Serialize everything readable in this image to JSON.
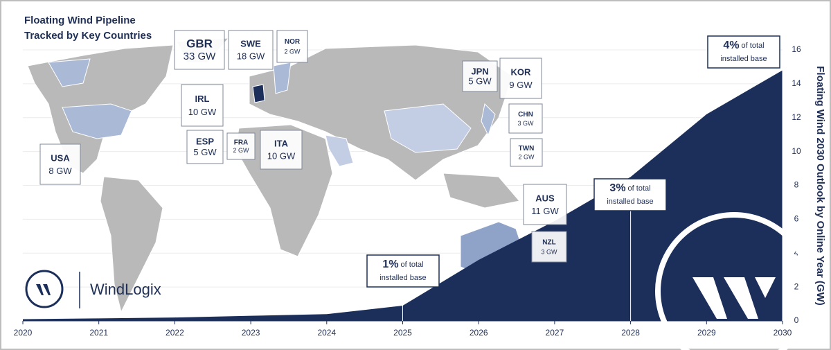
{
  "chart_data": {
    "type": "area",
    "title": "Floating Wind Pipeline",
    "subtitle": "Tracked by Key Countries",
    "x": [
      2020,
      2021,
      2022,
      2023,
      2024,
      2025,
      2026,
      2027,
      2028,
      2029,
      2030
    ],
    "values": [
      0.1,
      0.15,
      0.2,
      0.3,
      0.4,
      0.9,
      3.6,
      5.9,
      8.5,
      12.2,
      14.8
    ],
    "color": "#1b2f5a",
    "xlim": [
      2020,
      2030
    ],
    "xticks": [
      2020,
      2021,
      2022,
      2023,
      2024,
      2025,
      2026,
      2027,
      2028,
      2029,
      2030
    ],
    "ylim": [
      0,
      16
    ],
    "yticks": [
      0,
      2,
      4,
      6,
      8,
      10,
      12,
      14,
      16
    ],
    "grid": true,
    "y_label": "Floating Wind 2030 Outlook by Online Year (GW)",
    "annotations": [
      {
        "x": 2025,
        "pct": "1%",
        "line1": "of total",
        "line2": "installed base"
      },
      {
        "x": 2028,
        "pct": "3%",
        "line1": "of total",
        "line2": "installed base"
      },
      {
        "x": 2030,
        "pct": "4%",
        "line1": "of total",
        "line2": "installed base"
      }
    ],
    "countries": [
      {
        "code": "GBR",
        "capacity": "33 GW"
      },
      {
        "code": "SWE",
        "capacity": "18 GW"
      },
      {
        "code": "NOR",
        "capacity": "2 GW"
      },
      {
        "code": "IRL",
        "capacity": "10 GW"
      },
      {
        "code": "ESP",
        "capacity": "5 GW"
      },
      {
        "code": "FRA",
        "capacity": "2 GW"
      },
      {
        "code": "ITA",
        "capacity": "10 GW"
      },
      {
        "code": "USA",
        "capacity": "8 GW"
      },
      {
        "code": "JPN",
        "capacity": "5 GW"
      },
      {
        "code": "KOR",
        "capacity": "9 GW"
      },
      {
        "code": "CHN",
        "capacity": "3 GW"
      },
      {
        "code": "TWN",
        "capacity": "2 GW"
      },
      {
        "code": "AUS",
        "capacity": "11 GW"
      },
      {
        "code": "NZL",
        "capacity": "3 GW"
      }
    ],
    "brand": "WindLogix"
  }
}
